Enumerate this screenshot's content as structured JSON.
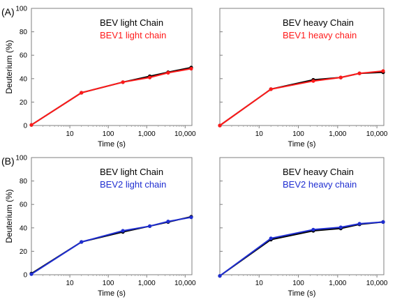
{
  "figure": {
    "rows": [
      {
        "label": "(A)"
      },
      {
        "label": "(B)"
      }
    ]
  },
  "chart_data": [
    {
      "type": "line",
      "panel": "A-left",
      "xlabel": "Time (s)",
      "ylabel": "Deuterium (%)",
      "x_scale": "log",
      "xlim": [
        1,
        15000
      ],
      "ylim": [
        0,
        100
      ],
      "xticks": [
        "10",
        "100",
        "1,000",
        "10,000"
      ],
      "yticks": [
        "0",
        "20",
        "40",
        "60",
        "80",
        "100"
      ],
      "x": [
        1,
        20,
        240,
        1200,
        3600,
        14400
      ],
      "series": [
        {
          "name": "BEV light Chain",
          "color": "#000000",
          "values": [
            0.5,
            28,
            37,
            42,
            45.5,
            49.5
          ]
        },
        {
          "name": "BEV1 light chain",
          "color": "#ff1a1a",
          "values": [
            0.5,
            28,
            37,
            41,
            45,
            48.5
          ]
        }
      ]
    },
    {
      "type": "line",
      "panel": "A-right",
      "xlabel": "Time (s)",
      "ylabel": "",
      "x_scale": "log",
      "xlim": [
        1,
        15000
      ],
      "ylim": [
        0,
        100
      ],
      "xticks": [
        "10",
        "100",
        "1,000",
        "10,000"
      ],
      "x": [
        1,
        20,
        240,
        1200,
        3600,
        14400
      ],
      "series": [
        {
          "name": "BEV heavy Chain",
          "color": "#000000",
          "values": [
            0,
            31,
            39,
            41,
            44.5,
            45.5
          ]
        },
        {
          "name": "BEV1 heavy chain",
          "color": "#ff1a1a",
          "values": [
            0,
            31,
            38,
            41,
            44.5,
            46.5
          ]
        }
      ]
    },
    {
      "type": "line",
      "panel": "B-left",
      "xlabel": "Time (s)",
      "ylabel": "Deuterium (%)",
      "x_scale": "log",
      "xlim": [
        1,
        15000
      ],
      "ylim": [
        0,
        100
      ],
      "xticks": [
        "10",
        "100",
        "1,000",
        "10,000"
      ],
      "yticks": [
        "0",
        "20",
        "40",
        "60",
        "80",
        "100"
      ],
      "x": [
        1,
        20,
        240,
        1200,
        3600,
        14400
      ],
      "series": [
        {
          "name": "BEV light Chain",
          "color": "#000000",
          "values": [
            1,
            28,
            36.5,
            41.5,
            45,
            49.5
          ]
        },
        {
          "name": "BEV2 light chain",
          "color": "#1f2ed1",
          "values": [
            0.5,
            28,
            37.5,
            41.5,
            45.5,
            49
          ]
        }
      ]
    },
    {
      "type": "line",
      "panel": "B-right",
      "xlabel": "Time (s)",
      "ylabel": "",
      "x_scale": "log",
      "xlim": [
        1,
        15000
      ],
      "ylim": [
        0,
        100
      ],
      "xticks": [
        "10",
        "100",
        "1,000",
        "10,000"
      ],
      "x": [
        1,
        20,
        240,
        1200,
        3600,
        14400
      ],
      "series": [
        {
          "name": "BEV heavy Chain",
          "color": "#000000",
          "values": [
            -1,
            30,
            37.5,
            39.5,
            43,
            45
          ]
        },
        {
          "name": "BEV2 heavy chain",
          "color": "#1f2ed1",
          "values": [
            -1,
            31,
            38.5,
            40.5,
            43.5,
            45
          ]
        }
      ]
    }
  ]
}
